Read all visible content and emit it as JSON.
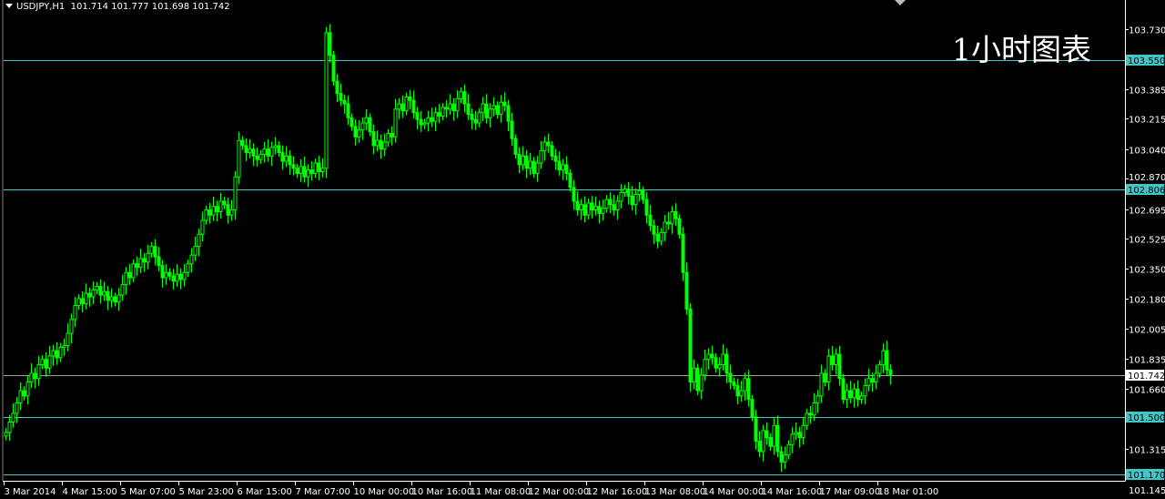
{
  "header": {
    "symbol": "USDJPY,H1",
    "ohlc": "101.714 101.777 101.698 101.742"
  },
  "watermark": "1小时图表",
  "colors": {
    "background": "#000000",
    "candle": "#00ff00",
    "level_line": "#40c8c8",
    "current_price_line": "#a0a0a0",
    "axis": "#ffffff"
  },
  "chart_data": {
    "type": "candlestick",
    "symbol": "USDJPY",
    "timeframe": "H1",
    "ylim": [
      101.145,
      103.75
    ],
    "y_ticks": [
      "103.730",
      "103.385",
      "103.215",
      "103.040",
      "102.870",
      "102.695",
      "102.525",
      "102.350",
      "102.180",
      "102.005",
      "101.835",
      "101.660",
      "101.315"
    ],
    "x_ticks": [
      "3 Mar 2014",
      "4 Mar 15:00",
      "5 Mar 07:00",
      "5 Mar 23:00",
      "6 Mar 15:00",
      "7 Mar 07:00",
      "10 Mar 00:00",
      "10 Mar 16:00",
      "11 Mar 08:00",
      "12 Mar 00:00",
      "12 Mar 16:00",
      "13 Mar 08:00",
      "14 Mar 00:00",
      "14 Mar 16:00",
      "17 Mar 09:00",
      "18 Mar 01:00"
    ],
    "bars_per_x_tick": 16,
    "levels": [
      {
        "price": "103.550",
        "kind": "horizontal-line"
      },
      {
        "price": "102.806",
        "kind": "horizontal-line"
      },
      {
        "price": "101.500",
        "kind": "horizontal-line"
      },
      {
        "price": "101.170",
        "kind": "horizontal-line"
      }
    ],
    "current_price": "101.742",
    "bottom_partial_tick": "101.145",
    "closes": [
      101.41,
      101.47,
      101.52,
      101.58,
      101.65,
      101.62,
      101.7,
      101.75,
      101.72,
      101.8,
      101.83,
      101.78,
      101.85,
      101.88,
      101.84,
      101.9,
      101.91,
      101.98,
      102.06,
      102.14,
      102.18,
      102.15,
      102.21,
      102.19,
      102.23,
      102.25,
      102.2,
      102.22,
      102.17,
      102.19,
      102.16,
      102.2,
      102.26,
      102.33,
      102.3,
      102.38,
      102.36,
      102.41,
      102.39,
      102.44,
      102.48,
      102.42,
      102.37,
      102.3,
      102.33,
      102.31,
      102.28,
      102.32,
      102.29,
      102.33,
      102.38,
      102.43,
      102.48,
      102.55,
      102.63,
      102.69,
      102.66,
      102.71,
      102.68,
      102.74,
      102.72,
      102.66,
      102.69,
      102.88,
      103.09,
      103.06,
      103.02,
      103.04,
      103.0,
      102.98,
      103.01,
      103.04,
      103.0,
      103.05,
      103.06,
      103.02,
      102.97,
      103.0,
      102.95,
      102.93,
      102.9,
      102.94,
      102.88,
      102.92,
      102.9,
      102.96,
      102.91,
      102.93,
      103.71,
      103.58,
      103.43,
      103.36,
      103.32,
      103.3,
      103.22,
      103.17,
      103.11,
      103.15,
      103.19,
      103.22,
      103.14,
      103.06,
      103.09,
      103.04,
      103.08,
      103.13,
      103.11,
      103.27,
      103.3,
      103.26,
      103.34,
      103.32,
      103.25,
      103.21,
      103.18,
      103.19,
      103.22,
      103.2,
      103.25,
      103.23,
      103.28,
      103.27,
      103.3,
      103.26,
      103.33,
      103.37,
      103.3,
      103.24,
      103.21,
      103.19,
      103.25,
      103.3,
      103.22,
      103.27,
      103.29,
      103.24,
      103.31,
      103.29,
      103.2,
      103.1,
      103.01,
      102.95,
      103.0,
      102.93,
      102.97,
      102.9,
      102.96,
      103.03,
      103.08,
      103.06,
      103.0,
      102.97,
      102.92,
      102.95,
      102.9,
      102.82,
      102.74,
      102.69,
      102.72,
      102.66,
      102.73,
      102.69,
      102.71,
      102.67,
      102.7,
      102.75,
      102.72,
      102.69,
      102.74,
      102.79,
      102.81,
      102.77,
      102.72,
      102.78,
      102.8,
      102.75,
      102.66,
      102.6,
      102.55,
      102.51,
      102.56,
      102.62,
      102.61,
      102.68,
      102.64,
      102.55,
      102.33,
      102.12,
      101.7,
      101.78,
      101.65,
      101.74,
      101.83,
      101.86,
      101.84,
      101.78,
      101.8,
      101.86,
      101.75,
      101.7,
      101.68,
      101.62,
      101.65,
      101.72,
      101.6,
      101.5,
      101.36,
      101.3,
      101.42,
      101.38,
      101.33,
      101.45,
      101.3,
      101.24,
      101.28,
      101.34,
      101.4,
      101.41,
      101.38,
      101.45,
      101.52,
      101.51,
      101.58,
      101.62,
      101.75,
      101.7,
      101.85,
      101.8,
      101.86,
      101.72,
      101.6,
      101.65,
      101.61,
      101.66,
      101.6,
      101.62,
      101.68,
      101.72,
      101.7,
      101.75,
      101.8,
      101.88,
      101.77,
      101.742
    ]
  }
}
